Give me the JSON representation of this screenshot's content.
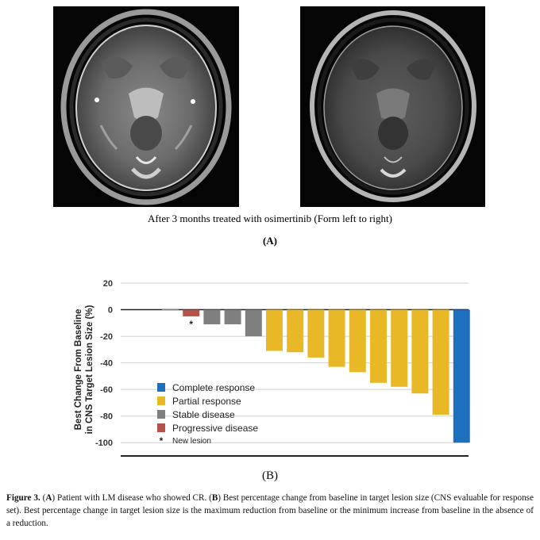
{
  "panel_a": {
    "caption": "After 3 months treated with osimertinib (Form left to right)",
    "label": "(A)"
  },
  "panel_b": {
    "label": "(B)"
  },
  "chart_data": {
    "type": "bar",
    "ylabel_line1": "Best Change From Baseline",
    "ylabel_line2": "in CNS Target Lesion Size (%)",
    "ylim": [
      -110,
      20
    ],
    "yticks": [
      20,
      0,
      -20,
      -40,
      -60,
      -80,
      -100
    ],
    "grid": true,
    "legend_placement": "bottom-left",
    "legend": [
      {
        "name": "Complete response",
        "color": "#1f6fbf"
      },
      {
        "name": "Partial response",
        "color": "#e8b827"
      },
      {
        "name": "Stable disease",
        "color": "#7f7f7f"
      },
      {
        "name": "Progressive disease",
        "color": "#b5524a"
      }
    ],
    "legend_note": "New lesion",
    "marker_symbol": "*",
    "bars": [
      {
        "value": 0.5,
        "category": "Stable disease",
        "color": "#7f7f7f"
      },
      {
        "value": -5,
        "category": "Progressive disease",
        "color": "#b5524a",
        "marker": true
      },
      {
        "value": -11,
        "category": "Stable disease",
        "color": "#7f7f7f"
      },
      {
        "value": -11,
        "category": "Stable disease",
        "color": "#7f7f7f"
      },
      {
        "value": -20,
        "category": "Stable disease",
        "color": "#7f7f7f"
      },
      {
        "value": -31,
        "category": "Partial response",
        "color": "#e8b827"
      },
      {
        "value": -32,
        "category": "Partial response",
        "color": "#e8b827"
      },
      {
        "value": -36,
        "category": "Partial response",
        "color": "#e8b827"
      },
      {
        "value": -43,
        "category": "Partial response",
        "color": "#e8b827"
      },
      {
        "value": -47,
        "category": "Partial response",
        "color": "#e8b827"
      },
      {
        "value": -55,
        "category": "Partial response",
        "color": "#e8b827"
      },
      {
        "value": -58,
        "category": "Partial response",
        "color": "#e8b827"
      },
      {
        "value": -63,
        "category": "Partial response",
        "color": "#e8b827"
      },
      {
        "value": -79,
        "category": "Partial response",
        "color": "#e8b827"
      },
      {
        "value": -100,
        "category": "Complete response",
        "color": "#1f6fbf"
      }
    ]
  },
  "figure_caption": {
    "label": "Figure 3.",
    "t1": " (",
    "a": "A",
    "t2": ") Patient with LM disease who showed CR. (",
    "b": "B",
    "t3": ") Best percentage change from baseline in target lesion size (CNS evaluable for response set). Best percentage change in target lesion size is the maximum reduction from baseline or the minimum increase from baseline in the absence of a reduction."
  }
}
